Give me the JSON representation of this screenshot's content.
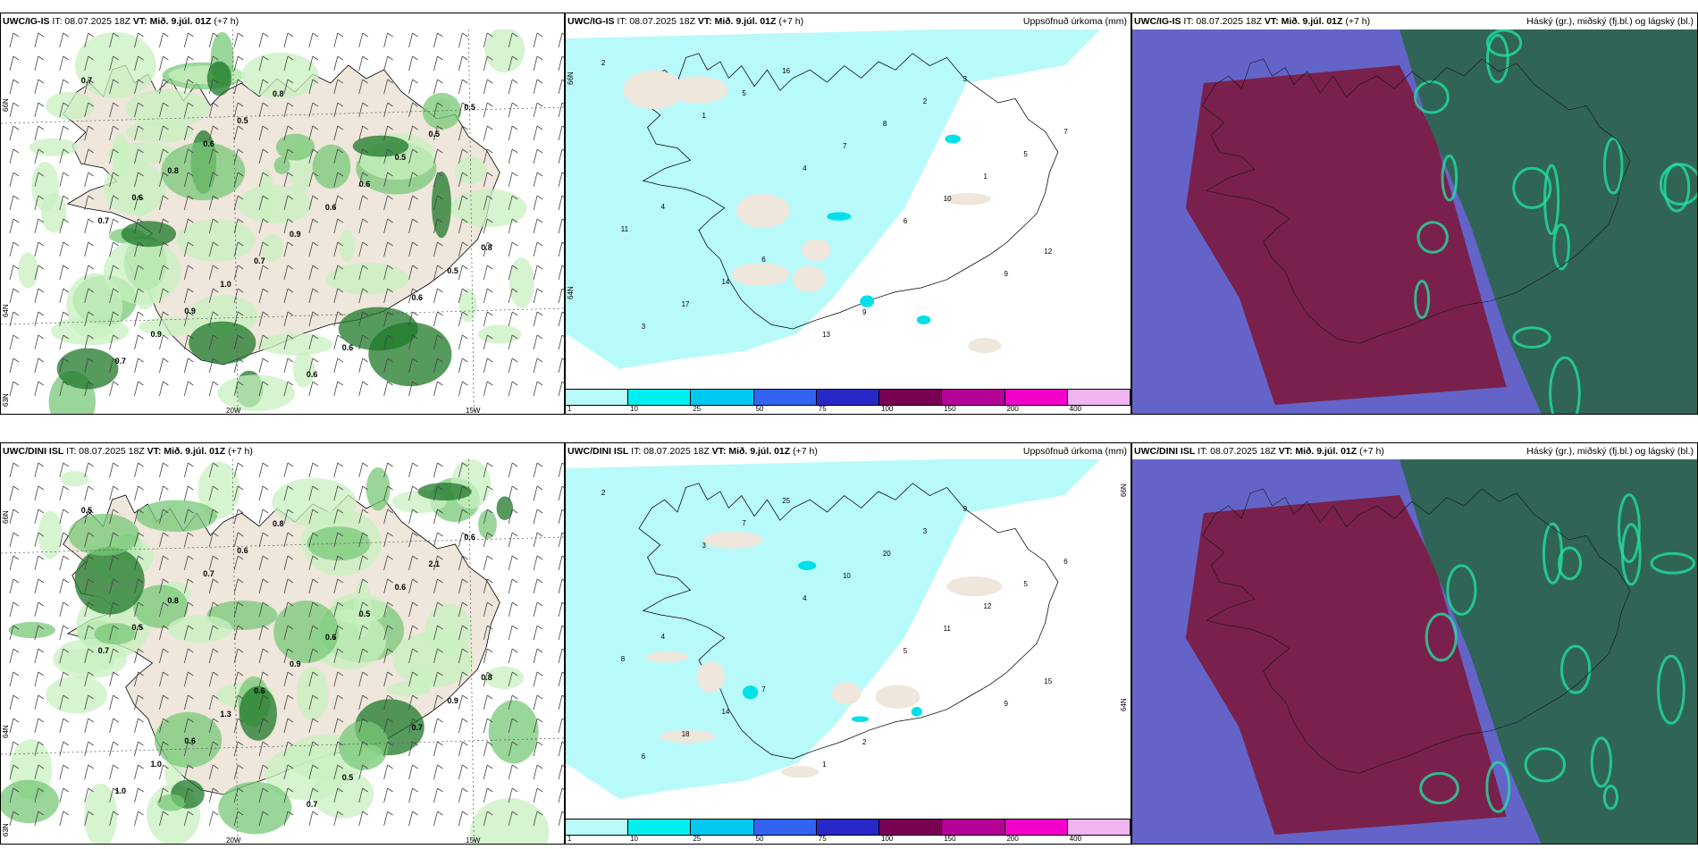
{
  "rows": [
    {
      "model": "UWC/IG-IS",
      "it_label": "IT: 08.07.2025 18Z",
      "vt_prefix": "VT:",
      "vt_value": "Mið. 9.júl. 01Z",
      "lead": "(+7 h)",
      "wind_labels": [
        "0.7",
        "0.6",
        "0.6",
        "0.5",
        "0.9",
        "0.8",
        "0.5",
        "0.7",
        "1.0",
        "0.6",
        "0.5",
        "0.8",
        "0.9",
        "0.6",
        "0.7",
        "0.5",
        "0.6",
        "0.8",
        "0.9",
        "0.6",
        "0.5",
        "0.6",
        "0.7"
      ],
      "precip_labels": [
        "2",
        "1",
        "4",
        "6",
        "9",
        "3",
        "5",
        "7",
        "10",
        "12",
        "17",
        "16",
        "8",
        "1",
        "11",
        "14",
        "13",
        "2",
        "5",
        "4",
        "6",
        "9",
        "3",
        "7"
      ]
    },
    {
      "model": "UWC/DINI ISL",
      "it_label": "IT: 08.07.2025 18Z",
      "vt_prefix": "VT:",
      "vt_value": "Mið. 9.júl. 01Z",
      "lead": "(+7 h)",
      "wind_labels": [
        "0.5",
        "0.7",
        "0.6",
        "0.9",
        "1.0",
        "0.8",
        "0.6",
        "0.7",
        "1.3",
        "0.5",
        "0.6",
        "0.8",
        "0.9",
        "0.7",
        "1.0",
        "0.6",
        "0.5",
        "0.8",
        "0.6",
        "0.7",
        "2.1",
        "0.5",
        "0.6"
      ],
      "precip_labels": [
        "2",
        "3",
        "4",
        "5",
        "9",
        "6",
        "7",
        "10",
        "11",
        "15",
        "18",
        "25",
        "20",
        "12",
        "8",
        "14",
        "1",
        "3",
        "5",
        "4",
        "7",
        "2",
        "9",
        "6"
      ]
    }
  ],
  "precip_title": "Uppsöfnuð úrkoma (mm)",
  "cloud_title": "Háský (gr.), miðský (fj.bl.) og lágský (bl.)",
  "axis_labels": {
    "lat_66": "66N",
    "lat_64": "64N",
    "lat_63": "63N",
    "lon_20": "20W",
    "lon_15": "15W"
  },
  "colorbar": {
    "colors": [
      "#b8fafa",
      "#00f0f0",
      "#00c8f0",
      "#3264f0",
      "#2828c8",
      "#780050",
      "#b40096",
      "#f000c8",
      "#f0b4f0"
    ],
    "labels": [
      "1",
      "10",
      "25",
      "50",
      "75",
      "100",
      "150",
      "200",
      "400"
    ]
  },
  "palette": {
    "land": "#efe6dc",
    "ocean_wind": "#ffffff",
    "precip_light": "#b8fafa",
    "green_light": "#c8f0c0",
    "green_mid": "#78c878",
    "green_dark": "#1e7828",
    "cloud_low": "#6464c8",
    "cloud_mid": "#7a1e46",
    "cloud_high": "#2d6450",
    "cloud_edge": "#20e0a0"
  }
}
